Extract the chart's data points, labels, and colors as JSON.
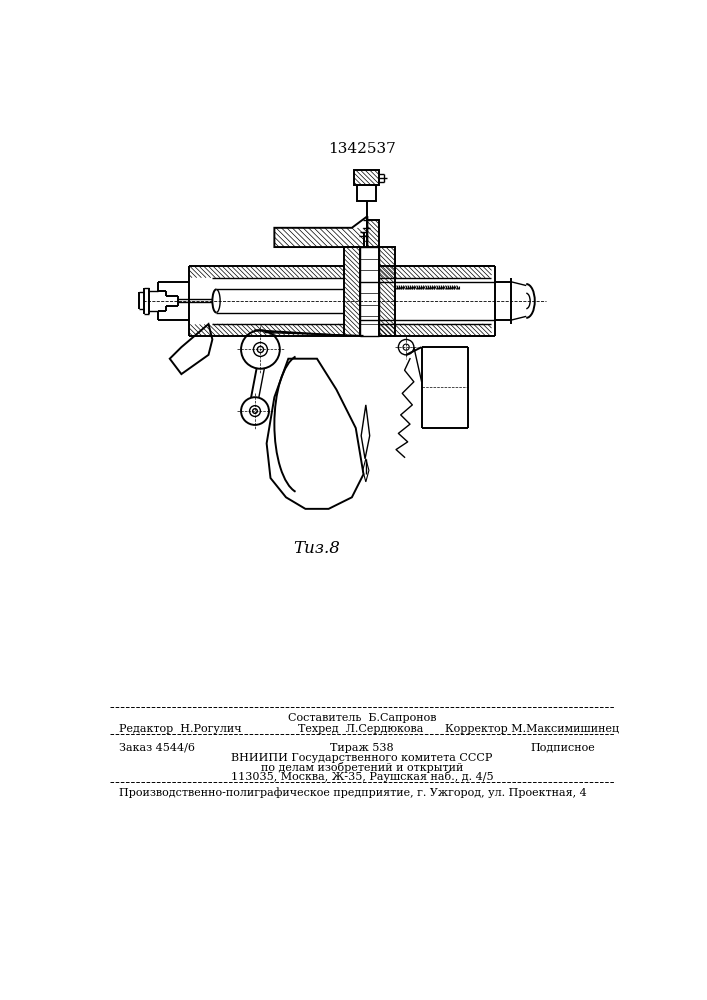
{
  "patent_number": "1342537",
  "fig_label": "Τиз.8",
  "footer_line1_left": "Редактор  Н.Рогулич",
  "footer_line1_center_top": "Составитель  Б.Сапронов",
  "footer_line1_center": "Техред  Л.Сердюкова",
  "footer_line1_right": "Корректор М.Максимишинец",
  "footer_line2_left": "Заказ 4544/6",
  "footer_line2_center": "Тираж 538",
  "footer_line2_right": "Подписное",
  "footer_line3": "ВНИИПИ Государственного комитета СССР",
  "footer_line4": "по делам изобретений и открытий",
  "footer_line5": "113035, Москва, Ж-35, Раушская наб., д. 4/5",
  "footer_line6": "Производственно-полиграфическое предприятие, г. Ужгород, ул. Проектная, 4",
  "bg_color": "#ffffff",
  "text_color": "#000000",
  "line_color": "#000000"
}
